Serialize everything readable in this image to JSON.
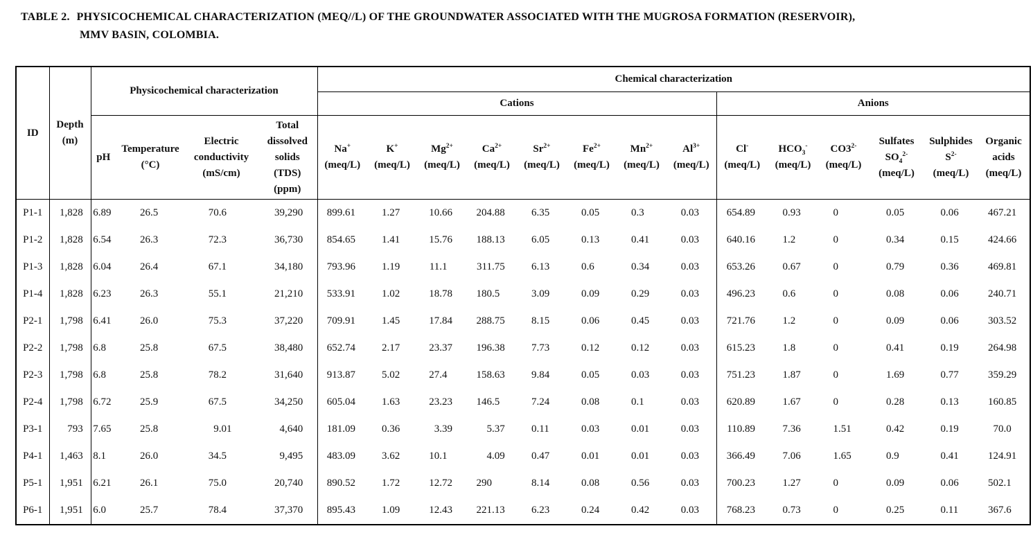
{
  "title": {
    "label": "TABLE 2.",
    "line1": "PHYSICOCHEMICAL CHARACTERIZATION (MEQ//L) OF THE GROUNDWATER ASSOCIATED WITH THE MUGROSA FORMATION (RESERVOIR),",
    "line2": "MMV BASIN, COLOMBIA."
  },
  "table": {
    "groups": {
      "physicochemical": "Physicochemical characterization",
      "chemical": "Chemical characterization",
      "cations": "Cations",
      "anions": "Anions"
    },
    "columns": [
      {
        "key": "id",
        "lines": [
          [
            {
              "t": "ID"
            }
          ]
        ]
      },
      {
        "key": "depth",
        "lines": [
          [
            {
              "t": "Depth"
            }
          ],
          [
            {
              "t": "(m)"
            }
          ]
        ]
      },
      {
        "key": "ph",
        "lines": [
          [
            {
              "t": "pH"
            }
          ]
        ]
      },
      {
        "key": "temperature",
        "lines": [
          [
            {
              "t": "Temperature"
            }
          ],
          [
            {
              "t": "(°C)"
            }
          ]
        ]
      },
      {
        "key": "conductivity",
        "lines": [
          [
            {
              "t": "Electric"
            }
          ],
          [
            {
              "t": "conductivity"
            }
          ],
          [
            {
              "t": "(mS/cm)"
            }
          ]
        ]
      },
      {
        "key": "tds",
        "lines": [
          [
            {
              "t": "Total"
            }
          ],
          [
            {
              "t": "dissolved"
            }
          ],
          [
            {
              "t": "solids"
            }
          ],
          [
            {
              "t": "(TDS)"
            }
          ],
          [
            {
              "t": "(ppm)"
            }
          ]
        ]
      },
      {
        "key": "na",
        "lines": [
          [
            {
              "t": "Na"
            },
            {
              "t": "+",
              "s": "sup"
            }
          ],
          [
            {
              "t": "(meq/L)"
            }
          ]
        ]
      },
      {
        "key": "k",
        "lines": [
          [
            {
              "t": "K"
            },
            {
              "t": "+",
              "s": "sup"
            }
          ],
          [
            {
              "t": "(meq/L)"
            }
          ]
        ]
      },
      {
        "key": "mg",
        "lines": [
          [
            {
              "t": "Mg"
            },
            {
              "t": "2+",
              "s": "sup"
            }
          ],
          [
            {
              "t": "(meq/L)"
            }
          ]
        ]
      },
      {
        "key": "ca",
        "lines": [
          [
            {
              "t": "Ca"
            },
            {
              "t": "2+",
              "s": "sup"
            }
          ],
          [
            {
              "t": "(meq/L)"
            }
          ]
        ]
      },
      {
        "key": "sr",
        "lines": [
          [
            {
              "t": "Sr"
            },
            {
              "t": "2+",
              "s": "sup"
            }
          ],
          [
            {
              "t": "(meq/L)"
            }
          ]
        ]
      },
      {
        "key": "fe",
        "lines": [
          [
            {
              "t": "Fe"
            },
            {
              "t": "2+",
              "s": "sup"
            }
          ],
          [
            {
              "t": "(meq/L)"
            }
          ]
        ]
      },
      {
        "key": "mn",
        "lines": [
          [
            {
              "t": "Mn"
            },
            {
              "t": "2+",
              "s": "sup"
            }
          ],
          [
            {
              "t": "(meq/L)"
            }
          ]
        ]
      },
      {
        "key": "al",
        "lines": [
          [
            {
              "t": "Al"
            },
            {
              "t": "3+",
              "s": "sup"
            }
          ],
          [
            {
              "t": "(meq/L)"
            }
          ]
        ]
      },
      {
        "key": "cl",
        "lines": [
          [
            {
              "t": "Cl"
            },
            {
              "t": "-",
              "s": "sup"
            }
          ],
          [
            {
              "t": "(meq/L)"
            }
          ]
        ]
      },
      {
        "key": "hco3",
        "lines": [
          [
            {
              "t": "HCO"
            },
            {
              "t": "3",
              "s": "sub"
            },
            {
              "t": "-",
              "s": "sup"
            }
          ],
          [
            {
              "t": "(meq/L)"
            }
          ]
        ]
      },
      {
        "key": "co3",
        "lines": [
          [
            {
              "t": "CO3"
            },
            {
              "t": "2-",
              "s": "sup"
            }
          ],
          [
            {
              "t": "(meq/L)"
            }
          ]
        ]
      },
      {
        "key": "sulfates",
        "lines": [
          [
            {
              "t": "Sulfates"
            }
          ],
          [
            {
              "t": "SO"
            },
            {
              "t": "4",
              "s": "sub"
            },
            {
              "t": "2-",
              "s": "sup"
            }
          ],
          [
            {
              "t": "(meq/L)"
            }
          ]
        ]
      },
      {
        "key": "sulphides",
        "lines": [
          [
            {
              "t": "Sulphides"
            }
          ],
          [
            {
              "t": "S"
            },
            {
              "t": "2-",
              "s": "sup"
            }
          ],
          [
            {
              "t": "(meq/L)"
            }
          ]
        ]
      },
      {
        "key": "organic_acids",
        "lines": [
          [
            {
              "t": "Organic"
            }
          ],
          [
            {
              "t": "acids"
            }
          ],
          [
            {
              "t": "(meq/L)"
            }
          ]
        ]
      }
    ],
    "rows": [
      [
        "P1-1",
        "1,828",
        "6.89",
        "26.5",
        "70.6",
        "39,290",
        "899.61",
        "1.27",
        "10.66",
        "204.88",
        "6.35",
        "0.05",
        "0.3",
        "0.03",
        "654.89",
        "0.93",
        "0",
        "0.05",
        "0.06",
        "467.21"
      ],
      [
        "P1-2",
        "1,828",
        "6.54",
        "26.3",
        "72.3",
        "36,730",
        "854.65",
        "1.41",
        "15.76",
        "188.13",
        "6.05",
        "0.13",
        "0.41",
        "0.03",
        "640.16",
        "1.2",
        "0",
        "0.34",
        "0.15",
        "424.66"
      ],
      [
        "P1-3",
        "1,828",
        "6.04",
        "26.4",
        "67.1",
        "34,180",
        "793.96",
        "1.19",
        "11.1",
        "311.75",
        "6.13",
        "0.6",
        "0.34",
        "0.03",
        "653.26",
        "0.67",
        "0",
        "0.79",
        "0.36",
        "469.81"
      ],
      [
        "P1-4",
        "1,828",
        "6.23",
        "26.3",
        "55.1",
        "21,210",
        "533.91",
        "1.02",
        "18.78",
        "180.5",
        "3.09",
        "0.09",
        "0.29",
        "0.03",
        "496.23",
        "0.6",
        "0",
        "0.08",
        "0.06",
        "240.71"
      ],
      [
        "P2-1",
        "1,798",
        "6.41",
        "26.0",
        "75.3",
        "37,220",
        "709.91",
        "1.45",
        "17.84",
        "288.75",
        "8.15",
        "0.06",
        "0.45",
        "0.03",
        "721.76",
        "1.2",
        "0",
        "0.09",
        "0.06",
        "303.52"
      ],
      [
        "P2-2",
        "1,798",
        "6.8",
        "25.8",
        "67.5",
        "38,480",
        "652.74",
        "2.17",
        "23.37",
        "196.38",
        "7.73",
        "0.12",
        "0.12",
        "0.03",
        "615.23",
        "1.8",
        "0",
        "0.41",
        "0.19",
        "264.98"
      ],
      [
        "P2-3",
        "1,798",
        "6.8",
        "25.8",
        "78.2",
        "31,640",
        "913.87",
        "5.02",
        "27.4",
        "158.63",
        "9.84",
        "0.05",
        "0.03",
        "0.03",
        "751.23",
        "1.87",
        "0",
        "1.69",
        "0.77",
        "359.29"
      ],
      [
        "P2-4",
        "1,798",
        "6.72",
        "25.9",
        "67.5",
        "34,250",
        "605.04",
        "1.63",
        "23.23",
        "146.5",
        "7.24",
        "0.08",
        "0.1",
        "0.03",
        "620.89",
        "1.67",
        "0",
        "0.28",
        "0.13",
        "160.85"
      ],
      [
        "P3-1",
        "793",
        "7.65",
        "25.8",
        "9.01",
        "4,640",
        "181.09",
        "0.36",
        "3.39",
        "5.37",
        "0.11",
        "0.03",
        "0.01",
        "0.03",
        "110.89",
        "7.36",
        "1.51",
        "0.42",
        "0.19",
        "70.0"
      ],
      [
        "P4-1",
        "1,463",
        "8.1",
        "26.0",
        "34.5",
        "9,495",
        "483.09",
        "3.62",
        "10.1",
        "4.09",
        "0.47",
        "0.01",
        "0.01",
        "0.03",
        "366.49",
        "7.06",
        "1.65",
        "0.9",
        "0.41",
        "124.91"
      ],
      [
        "P5-1",
        "1,951",
        "6.21",
        "26.1",
        "75.0",
        "20,740",
        "890.52",
        "1.72",
        "12.72",
        "290",
        "8.14",
        "0.08",
        "0.56",
        "0.03",
        "700.23",
        "1.27",
        "0",
        "0.09",
        "0.06",
        "502.1"
      ],
      [
        "P6-1",
        "1,951",
        "6.0",
        "25.7",
        "78.4",
        "37,370",
        "895.43",
        "1.09",
        "12.43",
        "221.13",
        "6.23",
        "0.24",
        "0.42",
        "0.03",
        "768.23",
        "0.73",
        "0",
        "0.25",
        "0.11",
        "367.6"
      ]
    ]
  }
}
